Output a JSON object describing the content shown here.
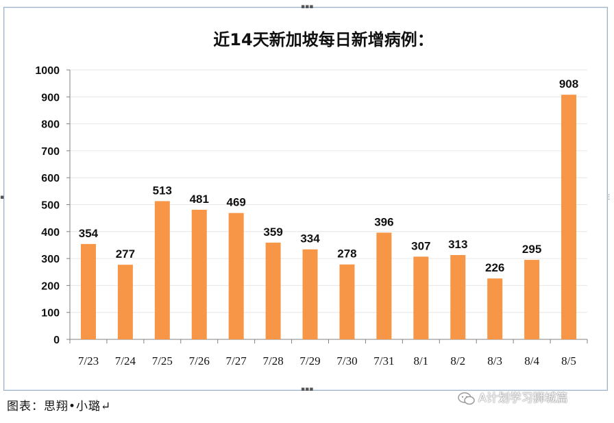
{
  "chart_data": {
    "type": "bar",
    "title": "近14天新加坡每日新增病例：",
    "xlabel": "",
    "ylabel": "",
    "categories": [
      "7/23",
      "7/24",
      "7/25",
      "7/26",
      "7/27",
      "7/28",
      "7/29",
      "7/30",
      "7/31",
      "8/1",
      "8/2",
      "8/3",
      "8/4",
      "8/5"
    ],
    "values": [
      354,
      277,
      513,
      481,
      469,
      359,
      334,
      278,
      396,
      307,
      313,
      226,
      295,
      908
    ],
    "ylim": [
      0,
      1000
    ],
    "yticks": [
      0,
      100,
      200,
      300,
      400,
      500,
      600,
      700,
      800,
      900,
      1000
    ],
    "grid": true,
    "bar_color": "#F79646",
    "data_labels": true
  },
  "caption": "图表：思翔•小璐↵",
  "watermark": "A计划学习狮城篇"
}
